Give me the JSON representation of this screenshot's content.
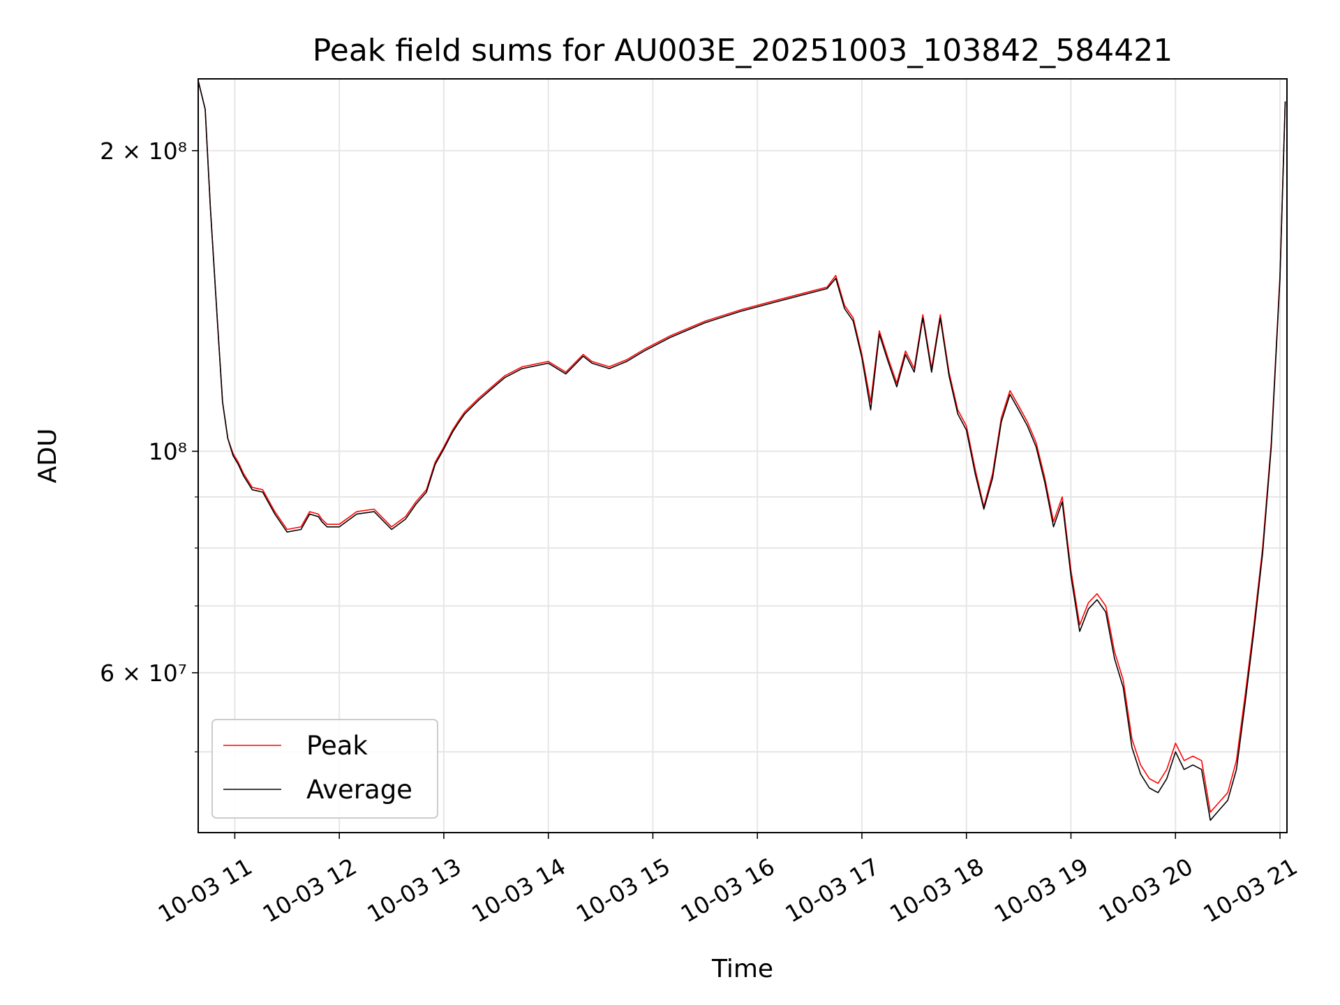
{
  "chart_data": {
    "type": "line",
    "title": "Peak field sums for AU003E_20251003_103842_584421",
    "xlabel": "Time",
    "ylabel": "ADU",
    "yscale": "log",
    "grid": true,
    "legend": "lower-left",
    "xlim": [
      "10-03 10:39",
      "10-03 21:04"
    ],
    "ylim": [
      41500000,
      236000000
    ],
    "x_ticks": [
      "10-03 11",
      "10-03 12",
      "10-03 13",
      "10-03 14",
      "10-03 15",
      "10-03 16",
      "10-03 17",
      "10-03 18",
      "10-03 19",
      "10-03 20",
      "10-03 21"
    ],
    "y_ticks": [
      {
        "value": 200000000,
        "label": "2 × 10⁸"
      },
      {
        "value": 100000000,
        "label": "10⁸"
      },
      {
        "value": 60000000,
        "label": "6 × 10⁷"
      }
    ],
    "x": [
      "10:39",
      "10:43",
      "10:46",
      "10:50",
      "10:53",
      "10:56",
      "10:59",
      "11:02",
      "11:05",
      "11:10",
      "11:16",
      "11:23",
      "11:30",
      "11:38",
      "11:43",
      "11:48",
      "11:50",
      "11:53",
      "12:00",
      "12:10",
      "12:20",
      "12:30",
      "12:38",
      "12:44",
      "12:50",
      "12:55",
      "13:00",
      "13:05",
      "13:08",
      "13:12",
      "13:20",
      "13:30",
      "13:35",
      "13:45",
      "14:00",
      "14:10",
      "14:20",
      "14:25",
      "14:35",
      "14:45",
      "14:55",
      "15:10",
      "15:30",
      "15:50",
      "16:10",
      "16:30",
      "16:40",
      "16:45",
      "16:50",
      "16:55",
      "17:00",
      "17:05",
      "17:10",
      "17:15",
      "17:20",
      "17:25",
      "17:30",
      "17:35",
      "17:40",
      "17:45",
      "17:50",
      "17:55",
      "18:00",
      "18:05",
      "18:10",
      "18:15",
      "18:20",
      "18:25",
      "18:30",
      "18:35",
      "18:40",
      "18:45",
      "18:50",
      "18:55",
      "19:00",
      "19:05",
      "19:10",
      "19:15",
      "19:20",
      "19:25",
      "19:30",
      "19:35",
      "19:40",
      "19:45",
      "19:50",
      "19:55",
      "20:00",
      "20:05",
      "20:10",
      "20:15",
      "20:20",
      "20:25",
      "20:30",
      "20:35",
      "20:40",
      "20:45",
      "20:50",
      "20:55",
      "21:00",
      "21:03"
    ],
    "series": [
      {
        "name": "Peak",
        "color": "#ff0000",
        "values": [
          235000000,
          220000000,
          175000000,
          135000000,
          112000000,
          103000000,
          99500000,
          97500000,
          95000000,
          92000000,
          91500000,
          87000000,
          83500000,
          84000000,
          87000000,
          86500000,
          85500000,
          84500000,
          84500000,
          87000000,
          87500000,
          84000000,
          86000000,
          89000000,
          91500000,
          97500000,
          101000000,
          105000000,
          107000000,
          109500000,
          113000000,
          117000000,
          119000000,
          121500000,
          123000000,
          120000000,
          125000000,
          123000000,
          121500000,
          123500000,
          126500000,
          130500000,
          135000000,
          138500000,
          141500000,
          144500000,
          146000000,
          150000000,
          140000000,
          136000000,
          125000000,
          112000000,
          132000000,
          124000000,
          117000000,
          126000000,
          121000000,
          137000000,
          121000000,
          137000000,
          120000000,
          110000000,
          106000000,
          96000000,
          88000000,
          95000000,
          108000000,
          115000000,
          111000000,
          107000000,
          102000000,
          94000000,
          85000000,
          90000000,
          76000000,
          67000000,
          70500000,
          72000000,
          70000000,
          63000000,
          59000000,
          51500000,
          48500000,
          47000000,
          46500000,
          48000000,
          51000000,
          49000000,
          49500000,
          49000000,
          43500000,
          44500000,
          45500000,
          49000000,
          57000000,
          67000000,
          80000000,
          102000000,
          150000000,
          224000000
        ]
      },
      {
        "name": "Average",
        "color": "#000000",
        "values": [
          235000000,
          220000000,
          175000000,
          135000000,
          112000000,
          103000000,
          99000000,
          97000000,
          94500000,
          91500000,
          91000000,
          86500000,
          83000000,
          83500000,
          86500000,
          86000000,
          85000000,
          84000000,
          84000000,
          86500000,
          87000000,
          83500000,
          85500000,
          88500000,
          91000000,
          97000000,
          100500000,
          104500000,
          106500000,
          109000000,
          112500000,
          116500000,
          118500000,
          121000000,
          122500000,
          119500000,
          124500000,
          122500000,
          121000000,
          123000000,
          126000000,
          130000000,
          134500000,
          138000000,
          141000000,
          144000000,
          145500000,
          149000000,
          139000000,
          135000000,
          124000000,
          110000000,
          131000000,
          123000000,
          116000000,
          125000000,
          120000000,
          136000000,
          120000000,
          136000000,
          119000000,
          109000000,
          105000000,
          95000000,
          87500000,
          94000000,
          107000000,
          114000000,
          110000000,
          106000000,
          101000000,
          93000000,
          84000000,
          89000000,
          75000000,
          66000000,
          69500000,
          71000000,
          69000000,
          62000000,
          58000000,
          50500000,
          47500000,
          46000000,
          45500000,
          47000000,
          50000000,
          48000000,
          48500000,
          48000000,
          42700000,
          43700000,
          44700000,
          48000000,
          56000000,
          66000000,
          79000000,
          101000000,
          149000000,
          224000000
        ]
      }
    ]
  }
}
